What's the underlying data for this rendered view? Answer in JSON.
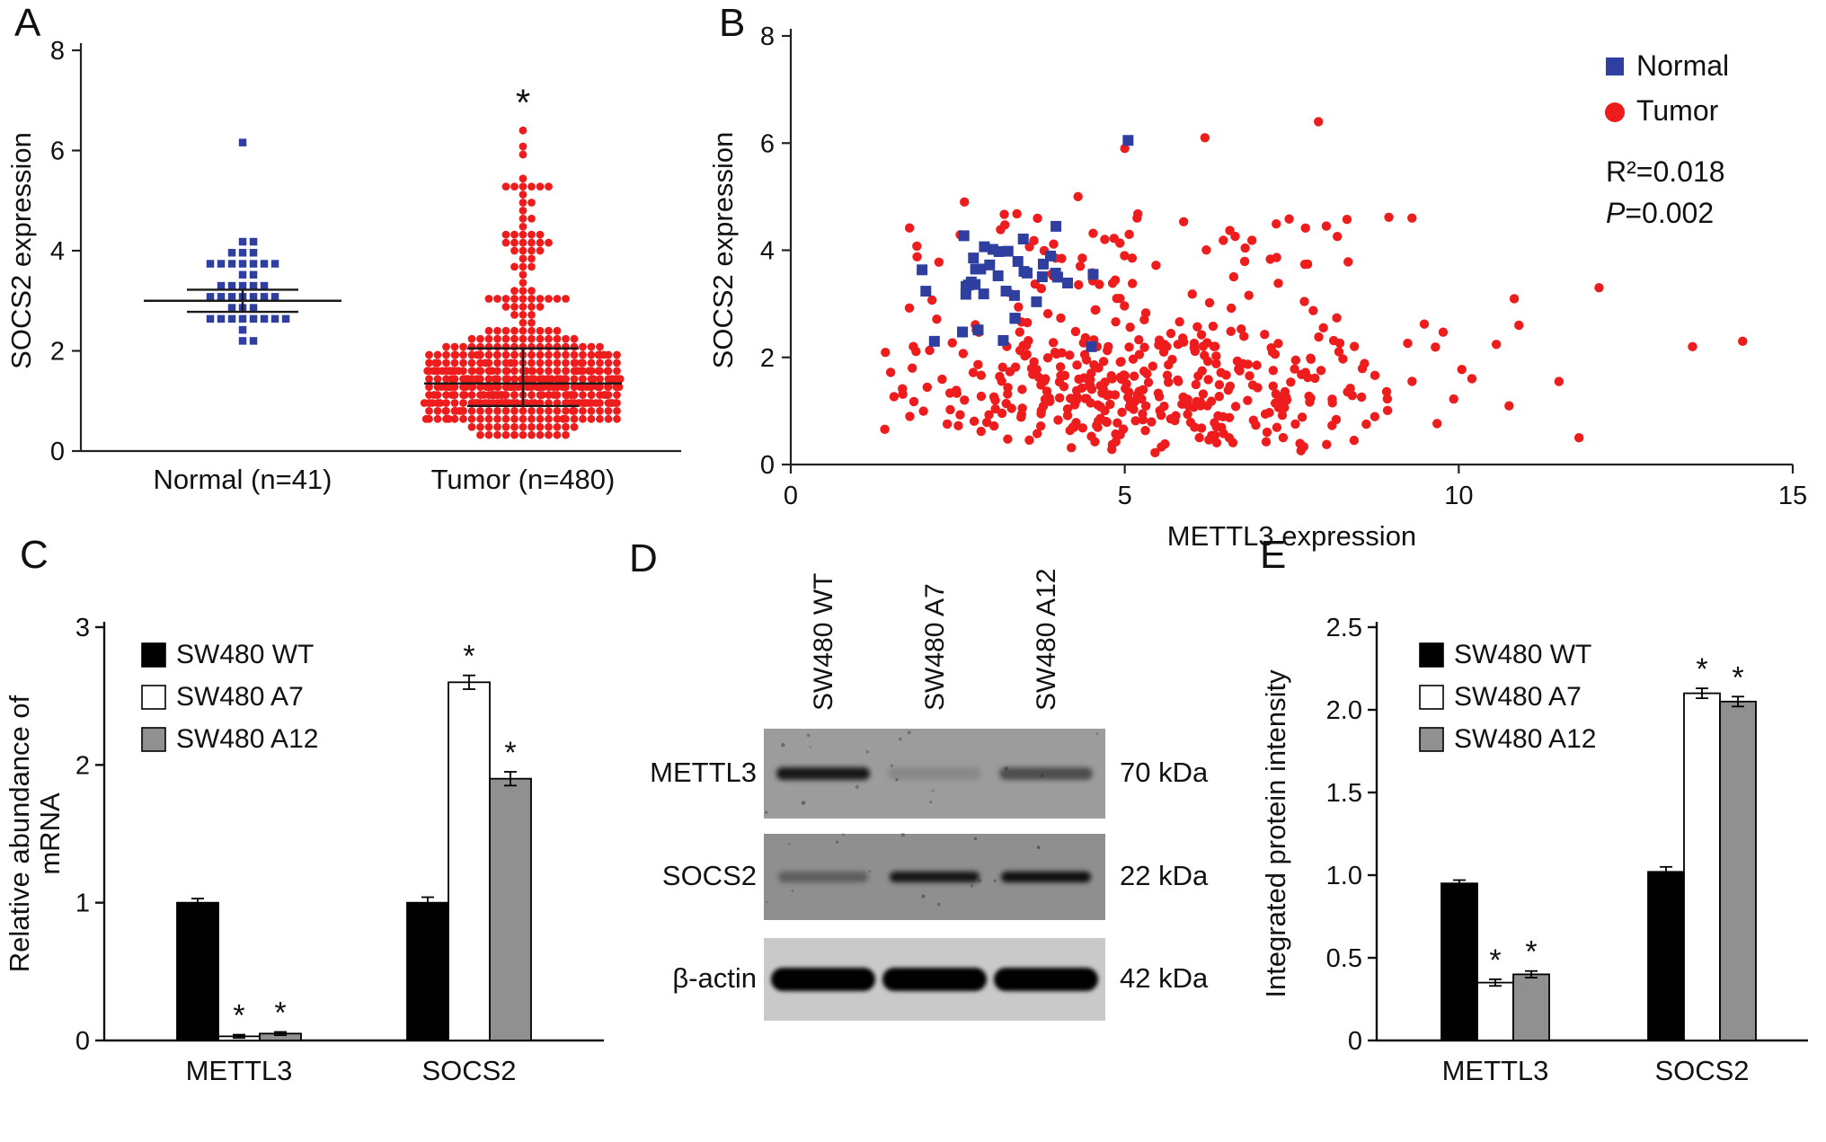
{
  "panels": {
    "A": "A",
    "B": "B",
    "C": "C",
    "D": "D",
    "E": "E"
  },
  "colors": {
    "normal_blue": "#2e3fa0",
    "tumor_red": "#ee1c1c",
    "bar_black": "#000000",
    "bar_white": "#ffffff",
    "bar_gray": "#909090"
  },
  "chart_data": [
    {
      "panel": "A",
      "type": "scatter",
      "subtype": "beeswarm-dot-plot",
      "ylabel": "SOCS2 expression",
      "ylim": [
        0,
        8
      ],
      "yticks": [
        0,
        2,
        4,
        6,
        8
      ],
      "groups": [
        {
          "label": "Normal (n=41)",
          "n": 41,
          "marker": "square",
          "color": "#2e3fa0",
          "mean": 3.0,
          "error_top": 3.22,
          "error_bottom": 2.78,
          "range": [
            2.0,
            6.05
          ],
          "dist": {
            "kind": "normal",
            "mean": 3.05,
            "sd": 0.5,
            "clamp": [
              2.0,
              4.45
            ],
            "n_random": 40,
            "outliers": [
              6.05
            ],
            "seed": 11
          },
          "sig": ""
        },
        {
          "label": "Tumor (n=480)",
          "n": 480,
          "marker": "circle",
          "color": "#ee1c1c",
          "mean": 1.35,
          "error_top": 2.05,
          "error_bottom": 0.9,
          "range": [
            0.2,
            6.4
          ],
          "dist": {
            "kind": "skewed",
            "bulk_mean": 1.25,
            "bulk_sd": 0.55,
            "clamp": [
              0.28,
              2.3
            ],
            "bulk_frac": 0.84,
            "tail_base": 2.3,
            "tail_span": 3.2,
            "tail_pow": 1.7,
            "n_random": 477,
            "outliers": [
              5.85,
              6.1,
              6.4
            ],
            "seed": 22
          },
          "sig": "*"
        }
      ]
    },
    {
      "panel": "B",
      "type": "scatter",
      "xlabel": "METTL3 expression",
      "ylabel": "SOCS2 expression",
      "xlim": [
        0,
        15
      ],
      "ylim": [
        0,
        8
      ],
      "xticks": [
        0,
        5,
        10,
        15
      ],
      "yticks": [
        0,
        2,
        4,
        6,
        8
      ],
      "legend": [
        {
          "label": "Normal",
          "marker": "square",
          "color": "#2e3fa0"
        },
        {
          "label": "Tumor",
          "marker": "circle",
          "color": "#ee1c1c"
        }
      ],
      "annotations": [
        "R²=0.018",
        "P=0.002"
      ],
      "series": [
        {
          "name": "Tumor",
          "marker": "circle",
          "color": "#ee1c1c",
          "dist": {
            "n_random": 458,
            "seed": 44,
            "x": {
              "kind": "normal",
              "mean": 5.3,
              "sd": 2.0,
              "clamp": [
                1.4,
                11.0
              ]
            },
            "y": {
              "kind": "skewed",
              "bulk_mean": 1.35,
              "bulk_sd": 0.62,
              "clamp": [
                0.22,
                2.75
              ],
              "bulk_frac": 0.78,
              "tail_base": 2.2,
              "tail_span": 2.5,
              "tail_pow": 1.5
            },
            "outlier_points": [
              [
                13.5,
                2.2
              ],
              [
                14.25,
                2.3
              ],
              [
                11.5,
                1.55
              ],
              [
                12.1,
                3.3
              ],
              [
                11.8,
                0.5
              ],
              [
                10.9,
                2.6
              ],
              [
                6.2,
                6.1
              ],
              [
                7.9,
                6.4
              ],
              [
                5.0,
                5.9
              ],
              [
                4.3,
                5.0
              ],
              [
                2.6,
                4.9
              ],
              [
                9.3,
                4.6
              ]
            ]
          }
        },
        {
          "name": "Normal",
          "marker": "square",
          "color": "#2e3fa0",
          "dist": {
            "n_random": 38,
            "seed": 33,
            "x": {
              "kind": "normal",
              "mean": 3.2,
              "sd": 0.8,
              "clamp": [
                1.6,
                5.2
              ]
            },
            "y": {
              "kind": "normal",
              "mean": 3.3,
              "sd": 0.55,
              "clamp": [
                2.1,
                4.5
              ]
            },
            "outlier_points": [
              [
                5.05,
                6.05
              ],
              [
                2.15,
                2.3
              ],
              [
                4.5,
                2.2
              ]
            ]
          }
        }
      ]
    },
    {
      "panel": "C",
      "type": "bar",
      "ylabel": "Relative abundance of mRNA",
      "ylim": [
        0,
        3
      ],
      "yticks": [
        0,
        1,
        2,
        3
      ],
      "ytick_labels": [
        "0",
        "1",
        "2",
        "3"
      ],
      "categories": [
        "METTL3",
        "SOCS2"
      ],
      "series": [
        {
          "name": "SW480 WT",
          "color": "#000000",
          "values": [
            1.0,
            1.0
          ],
          "errors": [
            0.03,
            0.04
          ],
          "sig": [
            "",
            ""
          ]
        },
        {
          "name": "SW480 A7",
          "color": "#ffffff",
          "values": [
            0.03,
            2.6
          ],
          "errors": [
            0.012,
            0.05
          ],
          "sig": [
            "*",
            "*"
          ]
        },
        {
          "name": "SW480 A12",
          "color": "#909090",
          "values": [
            0.05,
            1.9
          ],
          "errors": [
            0.012,
            0.05
          ],
          "sig": [
            "*",
            "*"
          ]
        }
      ]
    },
    {
      "panel": "E",
      "type": "bar",
      "ylabel": "Integrated protein intensity",
      "ylim": [
        0,
        2.5
      ],
      "yticks": [
        0,
        0.5,
        1,
        1.5,
        2,
        2.5
      ],
      "ytick_labels": [
        "0",
        "0.5",
        "1.0",
        "1.5",
        "2.0",
        "2.5"
      ],
      "categories": [
        "METTL3",
        "SOCS2"
      ],
      "series": [
        {
          "name": "SW480 WT",
          "color": "#000000",
          "values": [
            0.95,
            1.02
          ],
          "errors": [
            0.02,
            0.03
          ],
          "sig": [
            "",
            ""
          ]
        },
        {
          "name": "SW480 A7",
          "color": "#ffffff",
          "values": [
            0.35,
            2.1
          ],
          "errors": [
            0.02,
            0.03
          ],
          "sig": [
            "*",
            "*"
          ]
        },
        {
          "name": "SW480 A12",
          "color": "#909090",
          "values": [
            0.4,
            2.05
          ],
          "errors": [
            0.02,
            0.03
          ],
          "sig": [
            "*",
            "*"
          ]
        }
      ]
    }
  ],
  "western_blot": {
    "panel": "D",
    "lanes": [
      "SW480 WT",
      "SW480 A7",
      "SW480 A12"
    ],
    "rows": [
      {
        "protein": "METTL3",
        "kda": "70 kDa",
        "bg": "#9c9c9c",
        "band_intensity": [
          0.85,
          0.12,
          0.5
        ],
        "band_width": 104,
        "band_height": 14,
        "blur": 3
      },
      {
        "protein": "SOCS2",
        "kda": "22 kDa",
        "bg": "#8f8f8f",
        "band_intensity": [
          0.35,
          0.85,
          0.9
        ],
        "band_width": 100,
        "band_height": 12,
        "blur": 3
      },
      {
        "protein": "β-actin",
        "kda": "42 kDa",
        "bg": "#c9c9c9",
        "band_intensity": [
          1,
          1,
          1
        ],
        "band_width": 116,
        "band_height": 26,
        "blur": 2.5
      }
    ]
  }
}
